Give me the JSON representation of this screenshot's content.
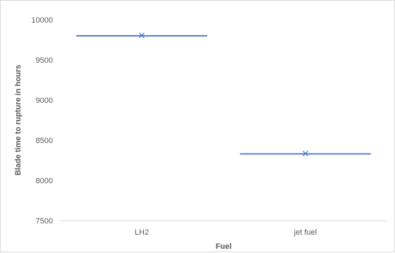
{
  "chart_data": {
    "type": "box",
    "title": "",
    "xlabel": "Fuel",
    "ylabel": "Blade time to rupture in hours",
    "categories": [
      "LH2",
      "jet fuel"
    ],
    "series": [
      {
        "values": [
          9800,
          8330
        ],
        "means": [
          9805,
          8335
        ]
      }
    ],
    "ylim": [
      7500,
      10000
    ],
    "yticks": [
      7500,
      8000,
      8500,
      9000,
      9500,
      10000
    ],
    "grid": false,
    "legend": "none",
    "colors": {
      "box_line": "#4472c4",
      "mean_marker": "#4472c4",
      "axis": "#d9d9d9",
      "text": "#595959"
    }
  }
}
